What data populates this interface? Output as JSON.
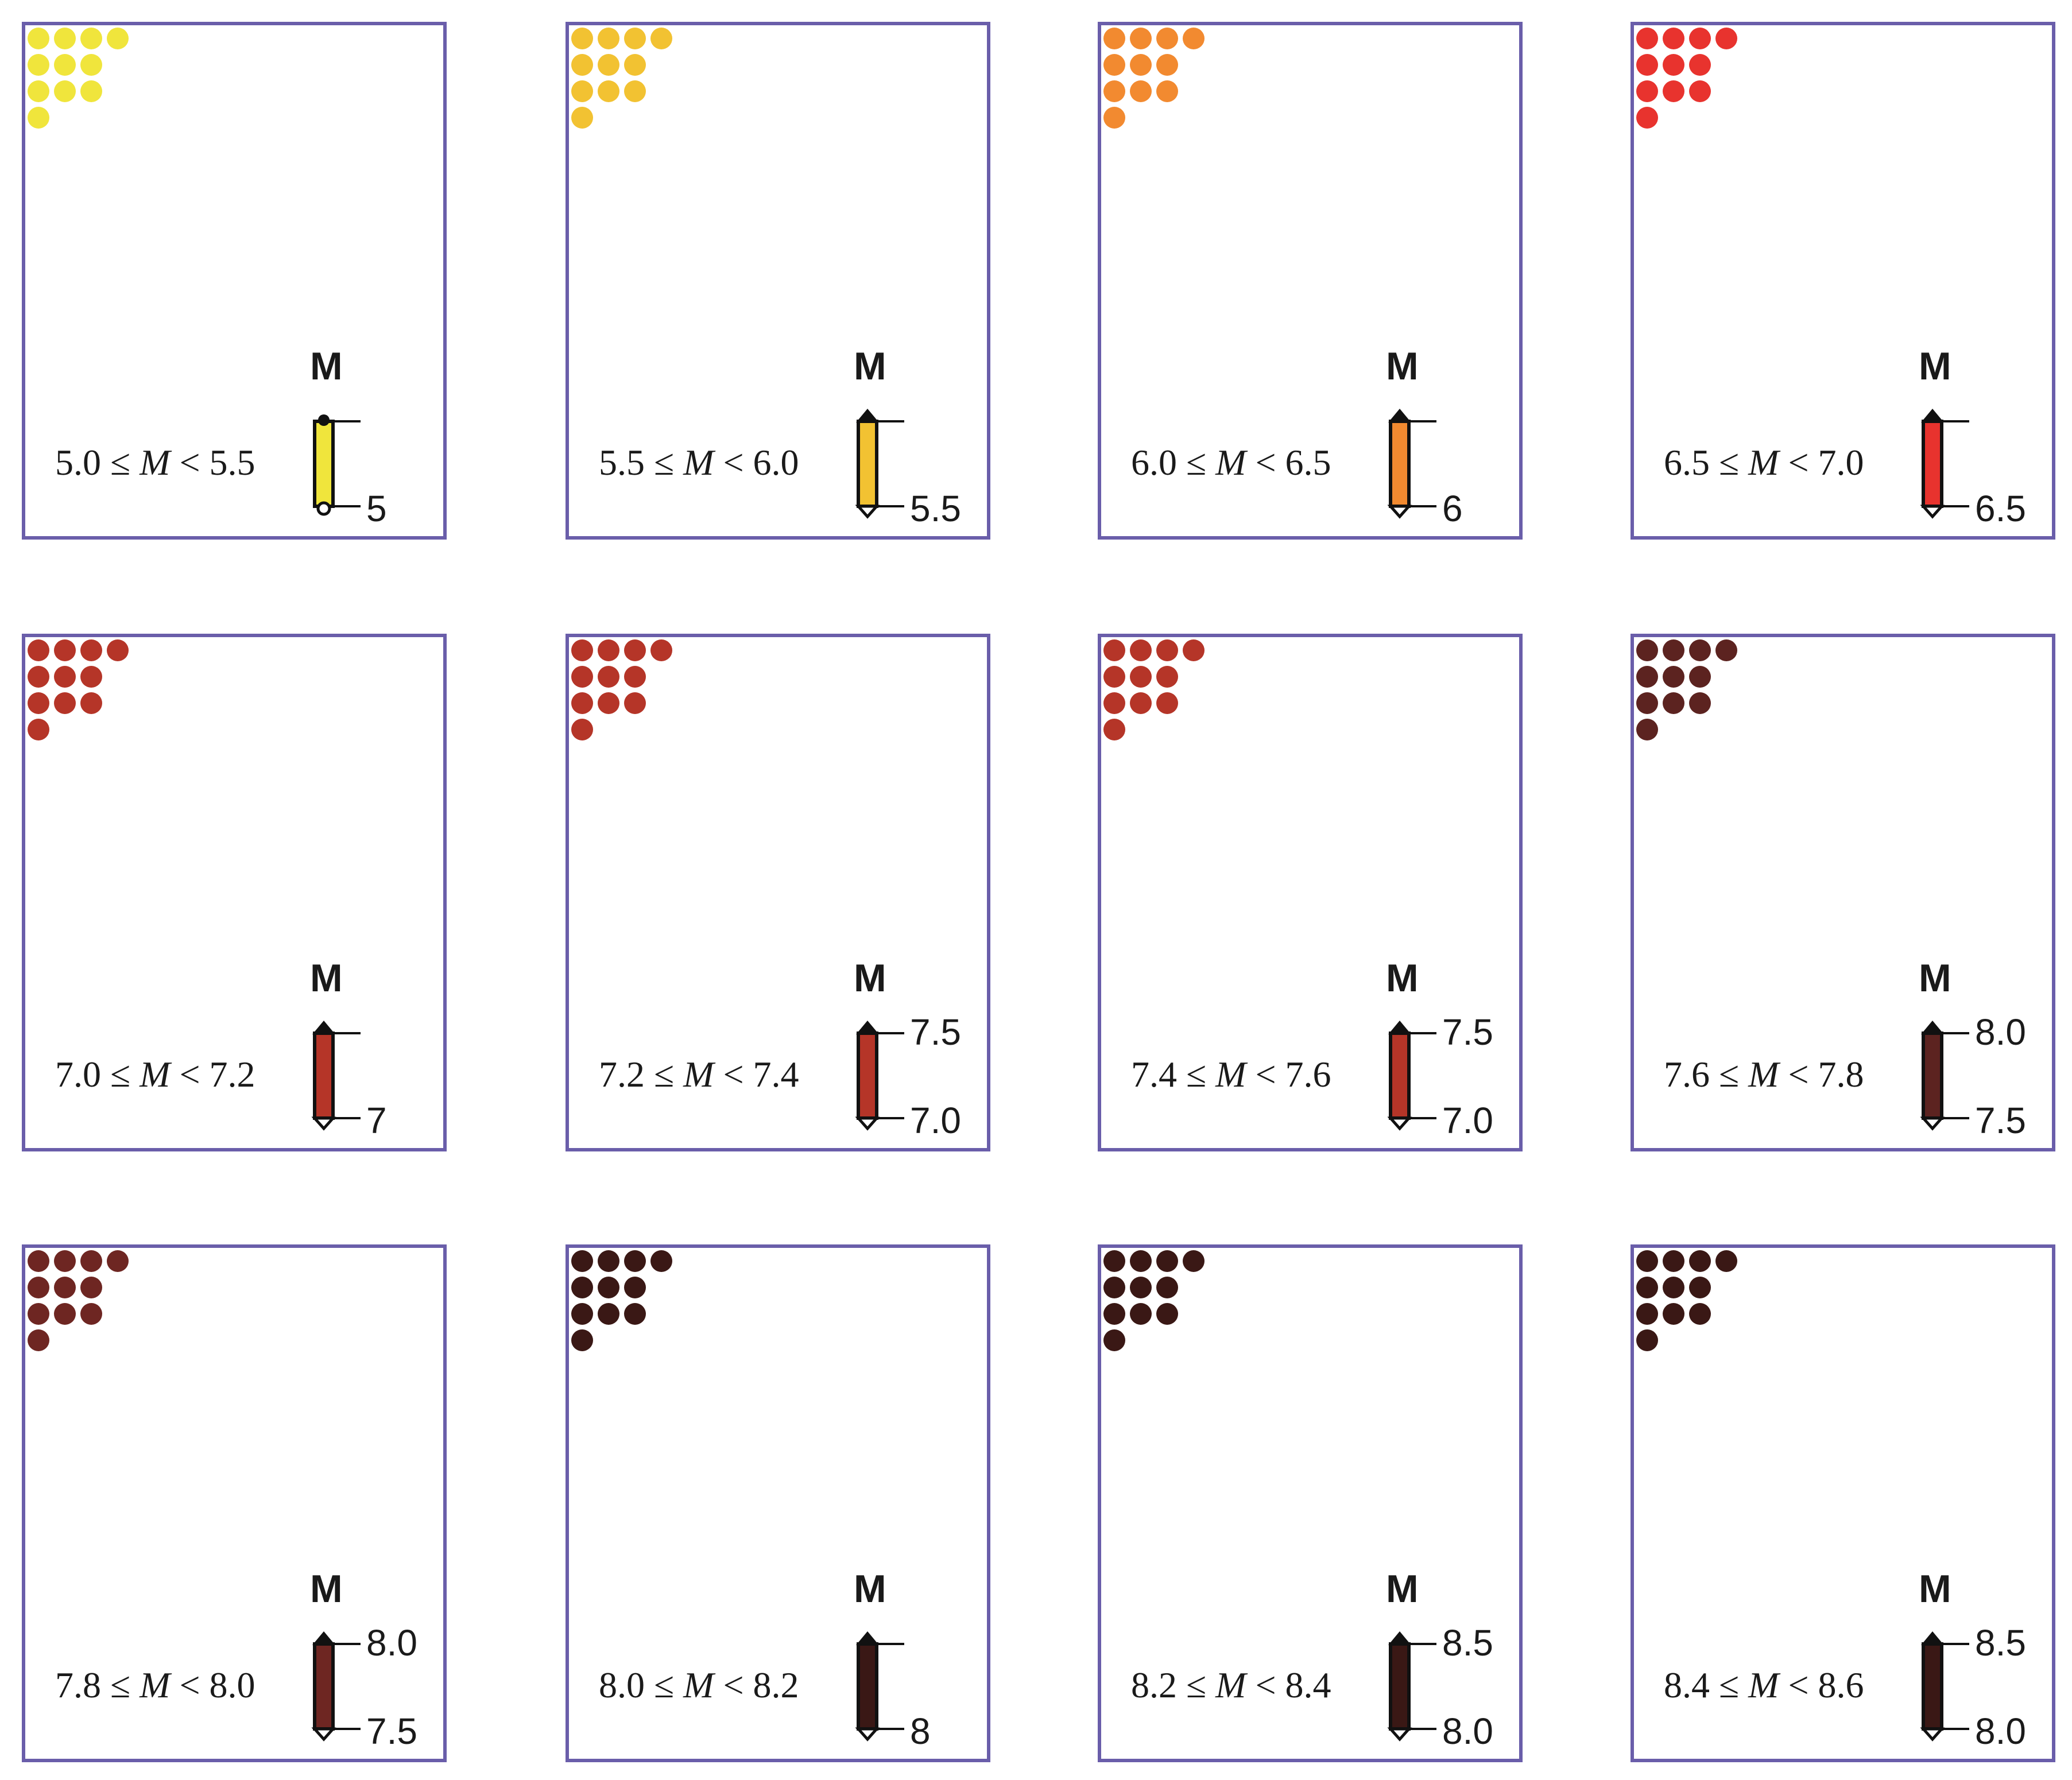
{
  "symbol_label": "M",
  "colors": {
    "frame": "#6a5eaa",
    "outline": "#111111"
  },
  "panels": [
    {
      "range": {
        "lo": "5.0",
        "le": "≤",
        "var": "M",
        "lt": "<",
        "hi": "5.5"
      },
      "color": "#f0e53c",
      "glyph": "circle-ends",
      "ticks": {
        "low": "5"
      }
    },
    {
      "range": {
        "lo": "5.5",
        "le": "≤",
        "var": "M",
        "lt": "<",
        "hi": "6.0"
      },
      "color": "#f2c232",
      "glyph": "arrow-open",
      "ticks": {
        "low": "5.5"
      }
    },
    {
      "range": {
        "lo": "6.0",
        "le": "≤",
        "var": "M",
        "lt": "<",
        "hi": "6.5"
      },
      "color": "#f28a30",
      "glyph": "arrow-open",
      "ticks": {
        "low": "6"
      }
    },
    {
      "range": {
        "lo": "6.5",
        "le": "≤",
        "var": "M",
        "lt": "<",
        "hi": "7.0"
      },
      "color": "#e8332e",
      "glyph": "arrow-open",
      "ticks": {
        "low": "6.5"
      }
    },
    {
      "range": {
        "lo": "7.0",
        "le": "≤",
        "var": "M",
        "lt": "<",
        "hi": "7.2"
      },
      "color": "#b53528",
      "glyph": "arrow-open",
      "ticks": {
        "low": "7"
      }
    },
    {
      "range": {
        "lo": "7.2",
        "le": "≤",
        "var": "M",
        "lt": "<",
        "hi": "7.4"
      },
      "color": "#b53528",
      "glyph": "arrow-open",
      "ticks": {
        "high": "7.5",
        "low": "7.0"
      }
    },
    {
      "range": {
        "lo": "7.4",
        "le": "≤",
        "var": "M",
        "lt": "<",
        "hi": "7.6"
      },
      "color": "#b53528",
      "glyph": "arrow-open",
      "ticks": {
        "high": "7.5",
        "low": "7.0"
      }
    },
    {
      "range": {
        "lo": "7.6",
        "le": "≤",
        "var": "M",
        "lt": "<",
        "hi": "7.8"
      },
      "color": "#5c2320",
      "glyph": "arrow-open",
      "ticks": {
        "high": "8.0",
        "low": "7.5"
      }
    },
    {
      "range": {
        "lo": "7.8",
        "le": "≤",
        "var": "M",
        "lt": "<",
        "hi": "8.0"
      },
      "color": "#6e2622",
      "glyph": "arrow-open",
      "ticks": {
        "high": "8.0",
        "low": "7.5"
      }
    },
    {
      "range": {
        "lo": "8.0",
        "le": "≤",
        "var": "M",
        "lt": "<",
        "hi": "8.2"
      },
      "color": "#3a1815",
      "glyph": "arrow-open",
      "ticks": {
        "low": "8"
      }
    },
    {
      "range": {
        "lo": "8.2",
        "le": "≤",
        "var": "M",
        "lt": "<",
        "hi": "8.4"
      },
      "color": "#3a1815",
      "glyph": "arrow-open",
      "ticks": {
        "high": "8.5",
        "low": "8.0"
      }
    },
    {
      "range": {
        "lo": "8.4",
        "le": "≤",
        "var": "M",
        "lt": "<",
        "hi": "8.6"
      },
      "color": "#3a1815",
      "glyph": "arrow-open",
      "ticks": {
        "high": "8.5",
        "low": "8.0"
      }
    }
  ]
}
